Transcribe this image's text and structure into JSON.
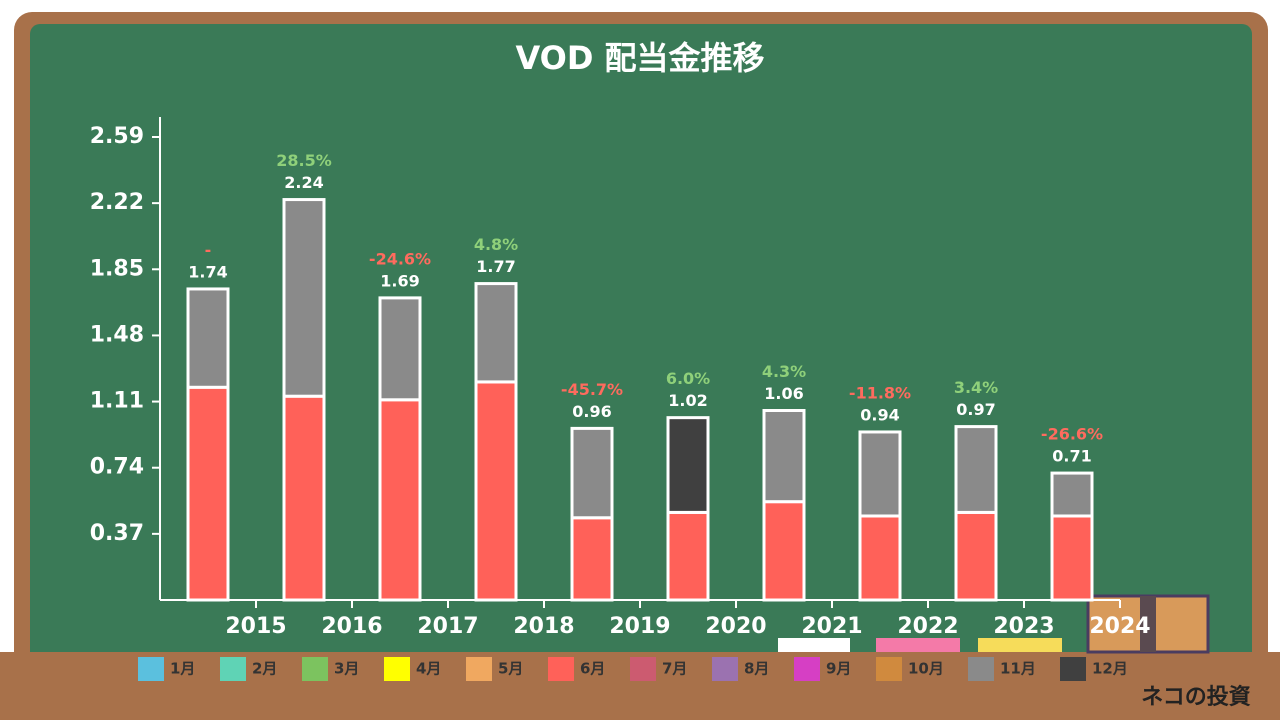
{
  "chart_data": {
    "type": "stacked_bar",
    "title": "VOD 配当金推移",
    "categories": [
      "2015",
      "2016",
      "2017",
      "2018",
      "2019",
      "2020",
      "2021",
      "2022",
      "2023",
      "2024"
    ],
    "series": [
      {
        "name": "1月",
        "color": "#5bc0de",
        "values": [
          null,
          null,
          null,
          null,
          null,
          null,
          null,
          null,
          null,
          null
        ]
      },
      {
        "name": "2月",
        "color": "#5fd3b5",
        "values": [
          null,
          null,
          null,
          null,
          null,
          null,
          null,
          null,
          null,
          null
        ]
      },
      {
        "name": "3月",
        "color": "#7cc35f",
        "values": [
          null,
          null,
          null,
          null,
          null,
          null,
          null,
          null,
          null,
          null
        ]
      },
      {
        "name": "4月",
        "color": "#ffff00",
        "values": [
          null,
          null,
          null,
          null,
          null,
          null,
          null,
          null,
          null,
          null
        ]
      },
      {
        "name": "5月",
        "color": "#f0a860",
        "values": [
          null,
          null,
          null,
          null,
          null,
          null,
          null,
          null,
          null,
          null
        ]
      },
      {
        "name": "6月",
        "color": "#ff6159",
        "values": [
          1.19,
          1.14,
          1.12,
          1.22,
          0.46,
          0.49,
          0.55,
          0.47,
          0.49,
          0.47
        ]
      },
      {
        "name": "7月",
        "color": "#cc5b70",
        "values": [
          null,
          null,
          null,
          null,
          null,
          null,
          null,
          null,
          null,
          null
        ]
      },
      {
        "name": "8月",
        "color": "#9b72b0",
        "values": [
          null,
          null,
          null,
          null,
          null,
          null,
          null,
          null,
          null,
          null
        ]
      },
      {
        "name": "9月",
        "color": "#d63fc4",
        "values": [
          null,
          null,
          null,
          null,
          null,
          null,
          null,
          null,
          null,
          null
        ]
      },
      {
        "name": "10月",
        "color": "#d08a3e",
        "values": [
          null,
          null,
          null,
          null,
          null,
          null,
          null,
          null,
          null,
          null
        ]
      },
      {
        "name": "11月",
        "color": "#8a8a8a",
        "values": [
          0.55,
          1.1,
          0.57,
          0.55,
          0.5,
          null,
          0.51,
          0.47,
          0.48,
          0.24
        ]
      },
      {
        "name": "12月",
        "color": "#404040",
        "values": [
          null,
          null,
          null,
          null,
          null,
          0.53,
          null,
          null,
          null,
          null
        ]
      }
    ],
    "totals": [
      1.74,
      2.24,
      1.69,
      1.77,
      0.96,
      1.02,
      1.06,
      0.94,
      0.97,
      0.71
    ],
    "growth_labels": [
      "-",
      "28.5%",
      "-24.6%",
      "4.8%",
      "-45.7%",
      "6.0%",
      "4.3%",
      "-11.8%",
      "3.4%",
      "-26.6%"
    ],
    "ylim": [
      0,
      2.59
    ],
    "yticks": [
      0.37,
      0.74,
      1.11,
      1.48,
      1.85,
      2.22,
      2.59
    ]
  },
  "brand": "ネコの投資"
}
